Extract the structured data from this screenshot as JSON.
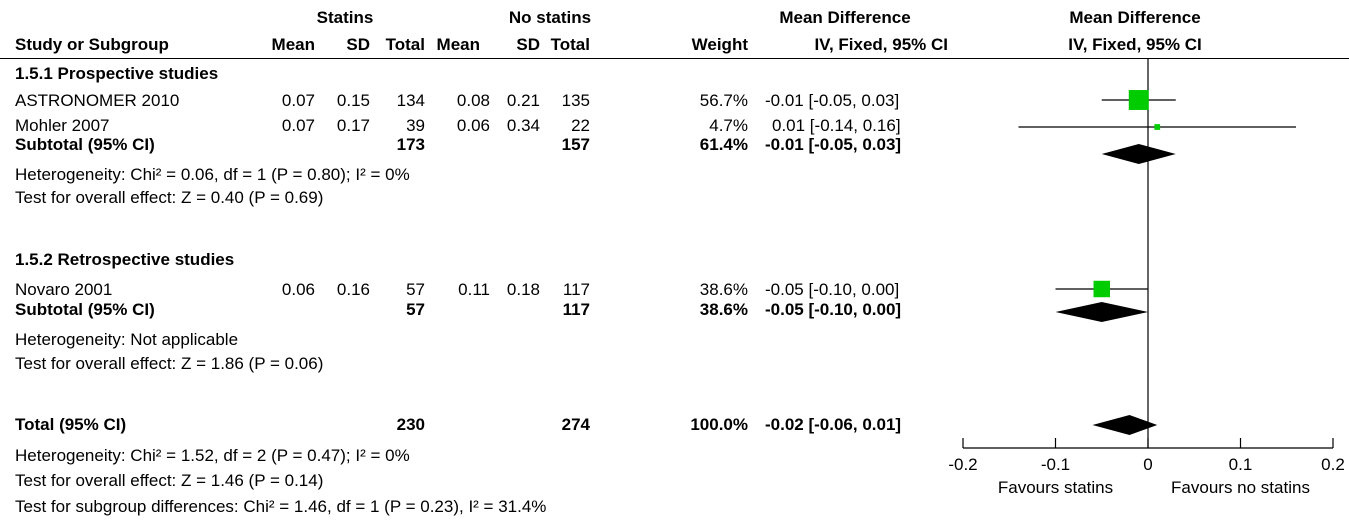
{
  "header": {
    "group1": "Statins",
    "group2": "No statins",
    "md_table_title": "Mean Difference",
    "md_plot_title": "Mean Difference",
    "col_study": "Study or Subgroup",
    "col_mean1": "Mean",
    "col_sd1": "SD",
    "col_total1": "Total",
    "col_mean2": "Mean",
    "col_sd2": "SD",
    "col_total2": "Total",
    "col_weight": "Weight",
    "col_md": "IV, Fixed, 95% CI",
    "col_plot_md": "IV, Fixed, 95% CI"
  },
  "subgroups": [
    {
      "title": "1.5.1 Prospective studies",
      "studies": [
        {
          "name": "ASTRONOMER 2010",
          "mean1": "0.07",
          "sd1": "0.15",
          "total1": "134",
          "mean2": "0.08",
          "sd2": "0.21",
          "total2": "135",
          "weight": "56.7%",
          "ci": "-0.01 [-0.05, 0.03]"
        },
        {
          "name": "Mohler 2007",
          "mean1": "0.07",
          "sd1": "0.17",
          "total1": "39",
          "mean2": "0.06",
          "sd2": "0.34",
          "total2": "22",
          "weight": "4.7%",
          "ci": "0.01 [-0.14, 0.16]"
        }
      ],
      "subtotal": {
        "label": "Subtotal (95% CI)",
        "total1": "173",
        "total2": "157",
        "weight": "61.4%",
        "ci": "-0.01 [-0.05, 0.03]"
      },
      "heterogeneity": "Heterogeneity: Chi² = 0.06, df = 1 (P = 0.80); I² = 0%",
      "overall": "Test for overall effect: Z = 0.40 (P = 0.69)"
    },
    {
      "title": "1.5.2 Retrospective studies",
      "studies": [
        {
          "name": "Novaro 2001",
          "mean1": "0.06",
          "sd1": "0.16",
          "total1": "57",
          "mean2": "0.11",
          "sd2": "0.18",
          "total2": "117",
          "weight": "38.6%",
          "ci": "-0.05 [-0.10, 0.00]"
        }
      ],
      "subtotal": {
        "label": "Subtotal (95% CI)",
        "total1": "57",
        "total2": "117",
        "weight": "38.6%",
        "ci": "-0.05 [-0.10, 0.00]"
      },
      "heterogeneity": "Heterogeneity: Not applicable",
      "overall": "Test for overall effect: Z = 1.86 (P = 0.06)"
    }
  ],
  "total": {
    "label": "Total (95% CI)",
    "total1": "230",
    "total2": "274",
    "weight": "100.0%",
    "ci": "-0.02 [-0.06, 0.01]"
  },
  "footer": {
    "heterogeneity": "Heterogeneity: Chi² = 1.52, df = 2 (P = 0.47); I² = 0%",
    "overall": "Test for overall effect: Z = 1.46 (P = 0.14)",
    "subgroup_diff": "Test for subgroup differences: Chi² = 1.46, df = 1 (P = 0.23), I² = 31.4%"
  },
  "chart_data": {
    "type": "forest",
    "xlim": [
      -0.2,
      0.2
    ],
    "ticks": [
      "-0.2",
      "-0.1",
      "0",
      "0.1",
      "0.2"
    ],
    "tick_values": [
      -0.2,
      -0.1,
      0,
      0.1,
      0.2
    ],
    "favours_left": "Favours statins",
    "favours_right": "Favours no statins",
    "colors": {
      "study_marker": "#00cc00",
      "diamond": "#000000",
      "line": "#000000"
    },
    "studies": [
      {
        "name": "ASTRONOMER 2010",
        "md": -0.01,
        "lo": -0.05,
        "hi": 0.03,
        "weight": 56.7
      },
      {
        "name": "Mohler 2007",
        "md": 0.01,
        "lo": -0.14,
        "hi": 0.16,
        "weight": 4.7
      },
      {
        "name": "Novaro 2001",
        "md": -0.05,
        "lo": -0.1,
        "hi": 0.0,
        "weight": 38.6
      }
    ],
    "diamonds": [
      {
        "name": "Subtotal 1.5.1",
        "md": -0.01,
        "lo": -0.05,
        "hi": 0.03
      },
      {
        "name": "Subtotal 1.5.2",
        "md": -0.05,
        "lo": -0.1,
        "hi": 0.0
      },
      {
        "name": "Total",
        "md": -0.02,
        "lo": -0.06,
        "hi": 0.01
      }
    ]
  }
}
